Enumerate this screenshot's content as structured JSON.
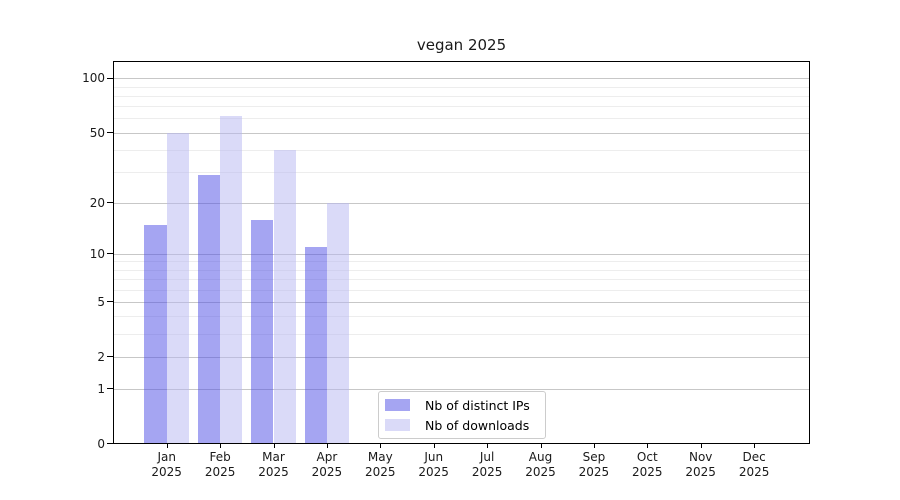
{
  "chart_data": {
    "type": "bar",
    "title": "vegan 2025",
    "categories": [
      "Jan",
      "Feb",
      "Mar",
      "Apr",
      "May",
      "Jun",
      "Jul",
      "Aug",
      "Sep",
      "Oct",
      "Nov",
      "Dec"
    ],
    "year": "2025",
    "series": [
      {
        "name": "Nb of distinct IPs",
        "color": "rgba(75,75,229,0.5)",
        "values": [
          15,
          29,
          16,
          11,
          0,
          0,
          0,
          0,
          0,
          0,
          0,
          0
        ]
      },
      {
        "name": "Nb of downloads",
        "color": "rgba(181,181,241,0.5)",
        "values": [
          50,
          62,
          40,
          20,
          0,
          0,
          0,
          0,
          0,
          0,
          0,
          0
        ]
      }
    ],
    "yscale": "log1p",
    "ylim": [
      0,
      125
    ],
    "yticks": [
      0,
      1,
      2,
      5,
      10,
      20,
      50,
      100
    ],
    "y_minor_gridlines": [
      3,
      4,
      6,
      7,
      8,
      9,
      30,
      40,
      60,
      70,
      80,
      90
    ],
    "grid": true,
    "legend_position": "lower center"
  },
  "colors": {
    "major_grid": "rgba(0,0,0,0.22)",
    "minor_grid": "rgba(0,0,0,0.07)",
    "axis": "#000000",
    "legend_border": "#cccccc"
  }
}
